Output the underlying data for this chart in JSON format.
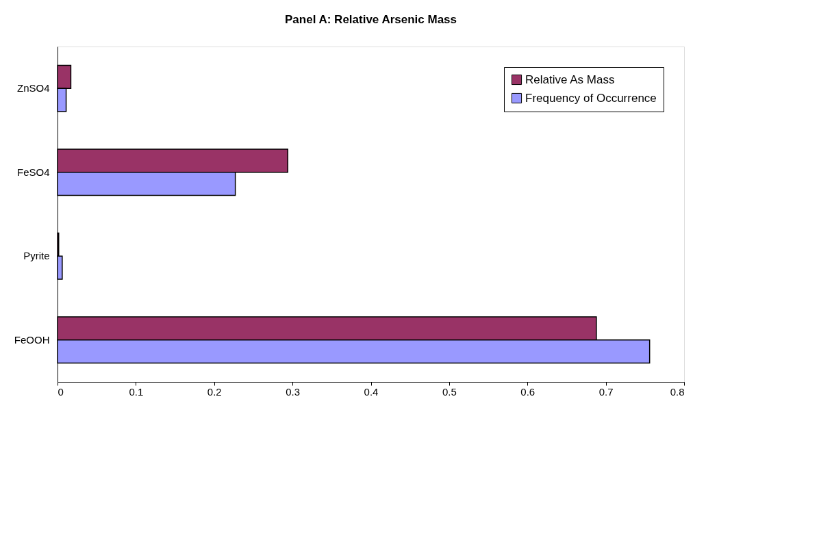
{
  "chart_data": {
    "type": "bar",
    "orientation": "horizontal",
    "title": "Panel A:  Relative Arsenic Mass",
    "categories": [
      "ZnSO4",
      "FeSO4",
      "Pyrite",
      "FeOOH"
    ],
    "series": [
      {
        "name": "Relative As Mass",
        "color": "#993366",
        "values": [
          0.017,
          0.294,
          0.0015,
          0.688
        ]
      },
      {
        "name": "Frequency of Occurrence",
        "color": "#9999ff",
        "values": [
          0.011,
          0.227,
          0.006,
          0.756
        ]
      }
    ],
    "xlim": [
      0,
      0.8
    ],
    "xticks": [
      0,
      0.1,
      0.2,
      0.3,
      0.4,
      0.5,
      0.6,
      0.7,
      0.8
    ],
    "grid": false,
    "legend": "top right"
  }
}
